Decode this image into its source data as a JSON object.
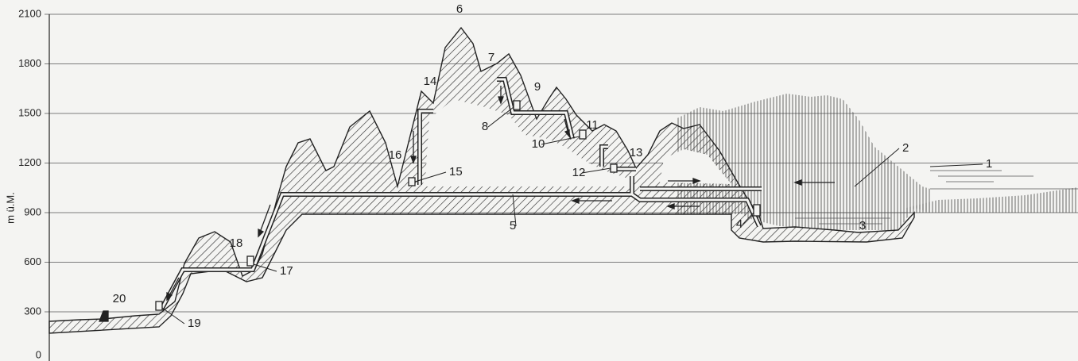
{
  "axis": {
    "label": "m ü.M.",
    "ylim": [
      0,
      2100
    ],
    "yticks": [
      0,
      300,
      600,
      900,
      1200,
      1500,
      1800,
      2100
    ]
  },
  "labels": [
    "1",
    "2",
    "3",
    "4",
    "5",
    "6",
    "7",
    "8",
    "9",
    "10",
    "11",
    "12",
    "13",
    "14",
    "15",
    "16",
    "17",
    "18",
    "19",
    "20"
  ]
}
